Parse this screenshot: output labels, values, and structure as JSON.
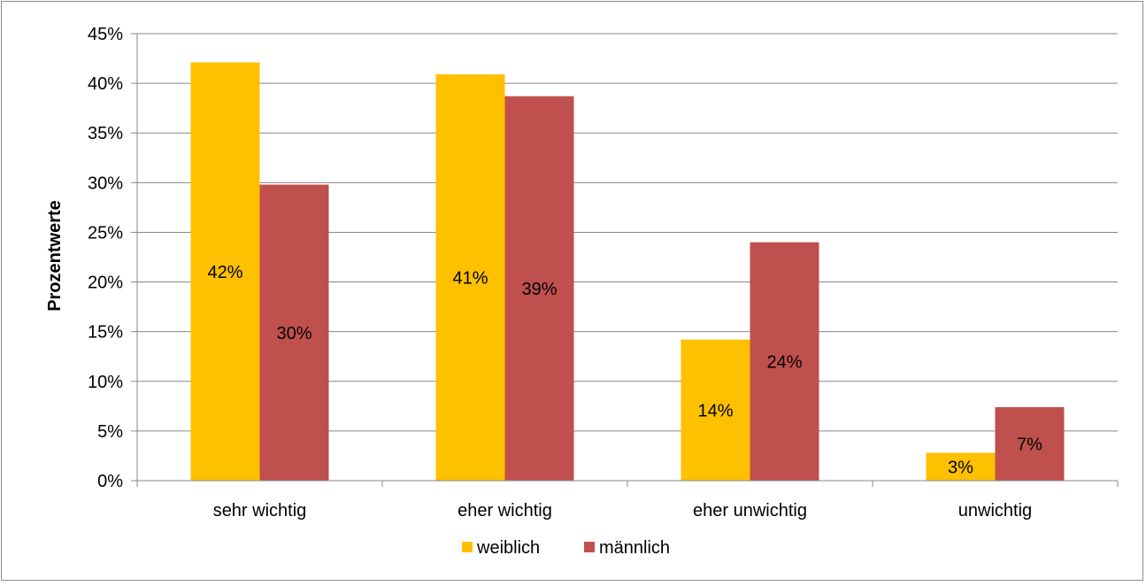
{
  "chart_data": {
    "type": "bar",
    "title": "",
    "xlabel": "",
    "ylabel": "Prozentwerte",
    "ylim": [
      0,
      45
    ],
    "y_tick_step": 5,
    "y_tick_suffix": "%",
    "grid": true,
    "legend_position": "bottom",
    "categories": [
      "sehr wichtig",
      "eher wichtig",
      "eher unwichtig",
      "unwichtig"
    ],
    "series": [
      {
        "name": "weiblich",
        "color": "#FFC000",
        "values": [
          42.1,
          40.9,
          14.2,
          2.8
        ],
        "labels": [
          "42%",
          "41%",
          "14%",
          "3%"
        ]
      },
      {
        "name": "männlich",
        "color": "#C0504D",
        "values": [
          29.8,
          38.7,
          24.0,
          7.4
        ],
        "labels": [
          "30%",
          "39%",
          "24%",
          "7%"
        ]
      }
    ]
  }
}
